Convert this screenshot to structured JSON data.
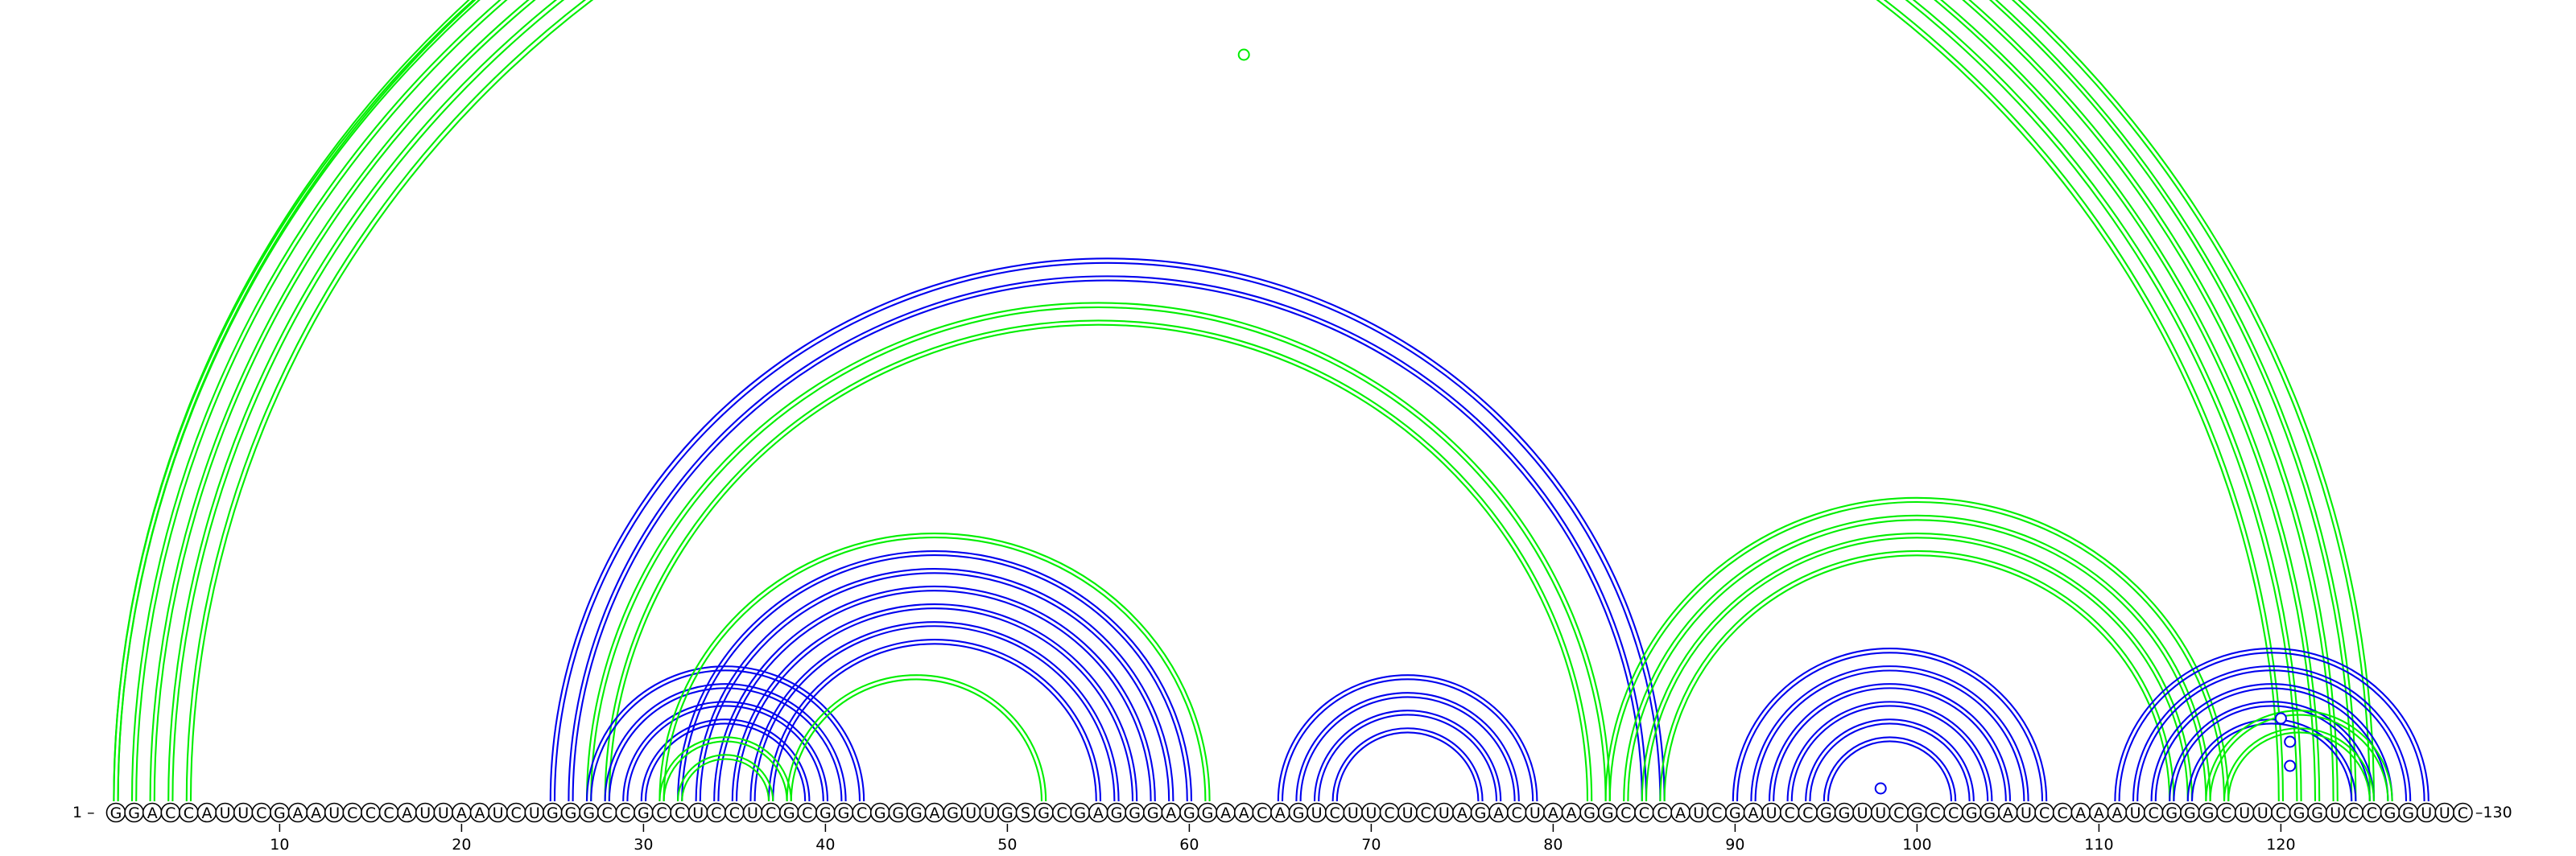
{
  "sequence": "GGACCAUUCGAAUCCCAUUAAUCUGGGCCGCCUCCUCGCGGCGGGAGUUGSGCGAGGGAGGAACAGUCUUCUCUAGACUAAGGCCCAUCGAUCCGGUUCGCCGGAUCCAAAUCGGGCUUCGGUCCGGUUC",
  "start_label": "1 –",
  "end_label": "–130",
  "ticks": [
    {
      "pos": 10,
      "label": "10"
    },
    {
      "pos": 20,
      "label": "20"
    },
    {
      "pos": 30,
      "label": "30"
    },
    {
      "pos": 40,
      "label": "40"
    },
    {
      "pos": 50,
      "label": "50"
    },
    {
      "pos": 60,
      "label": "60"
    },
    {
      "pos": 70,
      "label": "70"
    },
    {
      "pos": 80,
      "label": "80"
    },
    {
      "pos": 90,
      "label": "90"
    },
    {
      "pos": 100,
      "label": "100"
    },
    {
      "pos": 110,
      "label": "110"
    },
    {
      "pos": 120,
      "label": "120"
    }
  ],
  "colors": {
    "structure_a": "#0000ee",
    "structure_b": "#00ee00",
    "nucleotide_outline": "#000000"
  },
  "arc_groups": [
    {
      "structure": "b",
      "i_start": 1,
      "j_start": 125,
      "count": 1
    },
    {
      "structure": "b",
      "i_start": 1,
      "j_start": 124,
      "count": 1
    },
    {
      "structure": "b",
      "i_start": 2,
      "j_start": 123,
      "count": 4
    },
    {
      "structure": "a",
      "i_start": 25,
      "j_start": 86,
      "count": 2
    },
    {
      "structure": "b",
      "i_start": 27,
      "j_start": 83,
      "count": 2
    },
    {
      "structure": "a",
      "i_start": 27,
      "j_start": 42,
      "count": 4
    },
    {
      "structure": "b",
      "i_start": 31,
      "j_start": 61,
      "count": 1
    },
    {
      "structure": "a",
      "i_start": 32,
      "j_start": 60,
      "count": 6
    },
    {
      "structure": "b",
      "i_start": 31,
      "j_start": 38,
      "count": 2
    },
    {
      "structure": "b",
      "i_start": 38,
      "j_start": 52,
      "count": 1
    },
    {
      "structure": "a",
      "i_start": 65,
      "j_start": 79,
      "count": 4
    },
    {
      "structure": "b",
      "i_start": 83,
      "j_start": 117,
      "count": 4
    },
    {
      "structure": "a",
      "i_start": 90,
      "j_start": 107,
      "count": 6
    },
    {
      "structure": "a",
      "i_start": 111,
      "j_start": 128,
      "count": 5
    },
    {
      "structure": "b",
      "i_start": 116,
      "j_start": 126,
      "count": 2
    }
  ],
  "markers": [
    {
      "structure": "b",
      "pos": 63
    },
    {
      "structure": "a",
      "pos": 98
    },
    {
      "structure": "a",
      "pos": 120
    },
    {
      "structure": "a",
      "pos": 120.5
    },
    {
      "structure": "a",
      "pos": 120.5
    }
  ]
}
